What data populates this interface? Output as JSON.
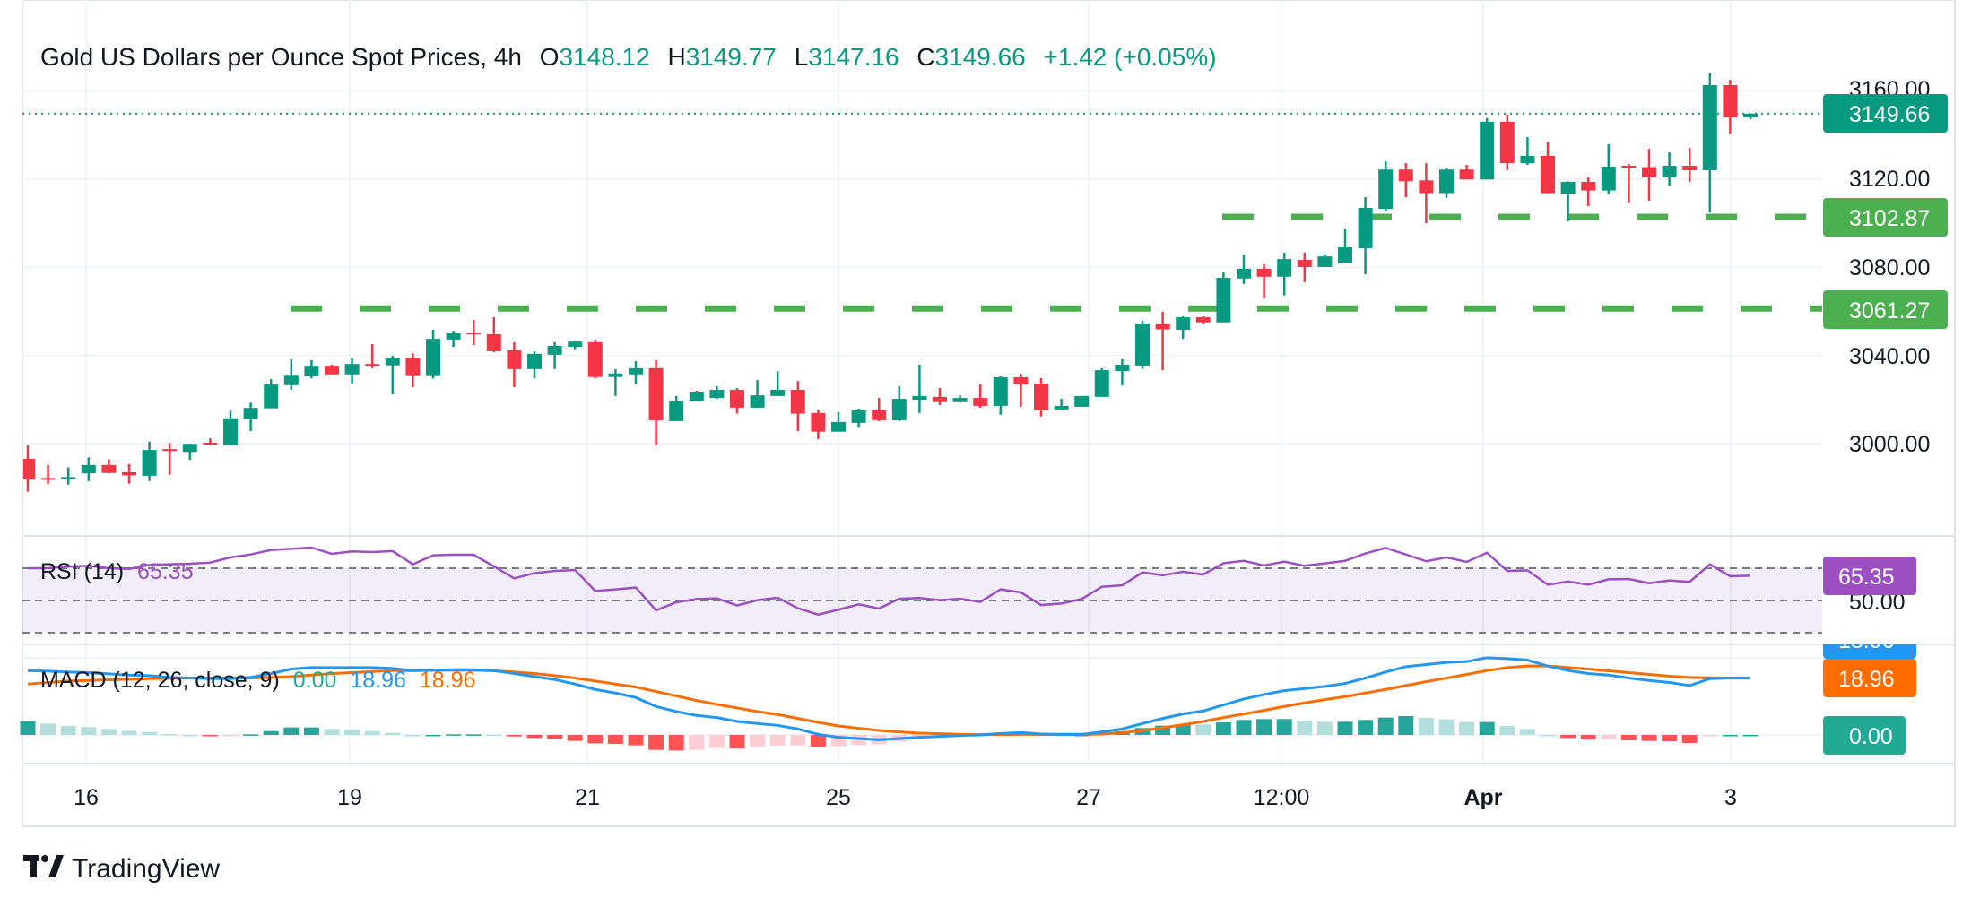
{
  "header": {
    "title": "Gold US Dollars per Ounce Spot Prices, 4h",
    "o_label": "O",
    "o_value": "3148.12",
    "h_label": "H",
    "h_value": "3149.77",
    "l_label": "L",
    "l_value": "3147.16",
    "c_label": "C",
    "c_value": "3149.66",
    "change": "+1.42 (+0.05%)"
  },
  "colors": {
    "up": "#089981",
    "down": "#f23645",
    "level": "#4caf50",
    "rsi": "#9c4fc0",
    "macd": "#2196f3",
    "signal": "#ff6d00",
    "hist_label": "#22ab94"
  },
  "price_axis": {
    "ticks": [
      "3160.00",
      "3120.00",
      "3080.00",
      "3040.00",
      "3000.00"
    ],
    "last_price": "3149.66",
    "levels": [
      "3102.87",
      "3061.27"
    ]
  },
  "rsi": {
    "legend": "RSI (14)",
    "value": "65.35",
    "axis_tick": "50.00"
  },
  "macd": {
    "legend": "MACD (12, 26, close, 9)",
    "hist_value": "0.00",
    "macd_value": "18.96",
    "signal_value": "18.96"
  },
  "time_axis": [
    "16",
    "19",
    "21",
    "25",
    "27",
    "12:00",
    "Apr",
    "3"
  ],
  "brand": "TradingView",
  "chart_data": {
    "type": "candlestick",
    "title": "Gold US Dollars per Ounce Spot Prices, 4h",
    "ylim": [
      2958,
      3201
    ],
    "y_ticks": [
      3000,
      3040,
      3080,
      3120,
      3160
    ],
    "x_tick_labels": [
      "16",
      "19",
      "21",
      "25",
      "27",
      "12:00",
      "Apr",
      "3"
    ],
    "grid": true,
    "horizontal_levels": [
      3102.87,
      3061.27
    ],
    "ohlc": [
      [
        2993.1,
        2999.2,
        2978.2,
        2983.7
      ],
      [
        2984.4,
        2990.3,
        2981.6,
        2984.0
      ],
      [
        2984.4,
        2989.2,
        2981.4,
        2984.8
      ],
      [
        2986.5,
        2993.7,
        2983.0,
        2990.3
      ],
      [
        2990.3,
        2992.9,
        2986.5,
        2986.7
      ],
      [
        2987.0,
        2990.7,
        2981.8,
        2985.6
      ],
      [
        2985.4,
        3000.9,
        2983.0,
        2997.1
      ],
      [
        2997.5,
        3000.3,
        2985.9,
        2996.8
      ],
      [
        2996.2,
        3000.0,
        2992.6,
        2999.9
      ],
      [
        3000.4,
        3002.4,
        2999.3,
        2999.6
      ],
      [
        2999.3,
        3015.0,
        2999.3,
        3011.5
      ],
      [
        3011.1,
        3018.6,
        3005.7,
        3016.2
      ],
      [
        3016.0,
        3029.2,
        3016.0,
        3026.8
      ],
      [
        3026.5,
        3038.2,
        3024.5,
        3031.2
      ],
      [
        3030.8,
        3037.8,
        3029.6,
        3035.3
      ],
      [
        3035.3,
        3035.8,
        3031.4,
        3031.4
      ],
      [
        3031.4,
        3038.6,
        3027.3,
        3036.1
      ],
      [
        3036.1,
        3045.1,
        3034.2,
        3035.5
      ],
      [
        3035.5,
        3039.8,
        3022.4,
        3038.6
      ],
      [
        3038.6,
        3041.0,
        3025.6,
        3031.0
      ],
      [
        3031.0,
        3051.6,
        3029.5,
        3047.5
      ],
      [
        3047.2,
        3051.2,
        3043.9,
        3050.0
      ],
      [
        3050.4,
        3056.1,
        3044.7,
        3049.8
      ],
      [
        3049.6,
        3057.3,
        3041.4,
        3041.9
      ],
      [
        3042.3,
        3046.0,
        3025.6,
        3033.8
      ],
      [
        3033.8,
        3041.9,
        3029.6,
        3040.7
      ],
      [
        3040.3,
        3046.0,
        3033.8,
        3044.3
      ],
      [
        3043.9,
        3046.3,
        3042.8,
        3046.3
      ],
      [
        3046.0,
        3047.2,
        3029.6,
        3030.2
      ],
      [
        3030.2,
        3033.8,
        3021.6,
        3031.8
      ],
      [
        3031.4,
        3037.4,
        3026.8,
        3034.2
      ],
      [
        3034.2,
        3037.8,
        2999.3,
        3010.6
      ],
      [
        3010.2,
        3021.6,
        3010.2,
        3019.5
      ],
      [
        3019.5,
        3024.0,
        3019.5,
        3023.6
      ],
      [
        3020.7,
        3026.0,
        3020.3,
        3024.4
      ],
      [
        3024.4,
        3025.2,
        3013.6,
        3016.3
      ],
      [
        3016.3,
        3028.8,
        3016.3,
        3021.9
      ],
      [
        3021.6,
        3032.9,
        3021.6,
        3024.4
      ],
      [
        3024.4,
        3028.4,
        3005.7,
        3013.6
      ],
      [
        3013.9,
        3015.5,
        3002.0,
        3005.4
      ],
      [
        3005.4,
        3014.3,
        3005.4,
        3009.8
      ],
      [
        3009.4,
        3015.9,
        3007.5,
        3015.1
      ],
      [
        3015.1,
        3020.7,
        3010.2,
        3010.6
      ],
      [
        3010.6,
        3026.0,
        3010.2,
        3020.3
      ],
      [
        3019.9,
        3035.8,
        3013.9,
        3021.6
      ],
      [
        3021.2,
        3025.2,
        3017.5,
        3019.2
      ],
      [
        3019.2,
        3021.9,
        3018.6,
        3020.7
      ],
      [
        3020.7,
        3026.8,
        3016.3,
        3017.1
      ],
      [
        3017.1,
        3030.5,
        3013.1,
        3030.1
      ],
      [
        3030.1,
        3031.7,
        3016.7,
        3026.8
      ],
      [
        3027.2,
        3029.7,
        3012.3,
        3015.1
      ],
      [
        3015.5,
        3020.3,
        3015.1,
        3017.1
      ],
      [
        3016.7,
        3021.6,
        3016.7,
        3021.6
      ],
      [
        3021.2,
        3034.2,
        3021.2,
        3033.3
      ],
      [
        3032.9,
        3038.3,
        3026.4,
        3035.8
      ],
      [
        3035.4,
        3055.7,
        3033.9,
        3054.5
      ],
      [
        3054.5,
        3059.8,
        3033.3,
        3051.8
      ],
      [
        3051.6,
        3057.7,
        3047.5,
        3057.3
      ],
      [
        3057.3,
        3057.7,
        3054.1,
        3055.0
      ],
      [
        3055.0,
        3077.6,
        3055.0,
        3075.2
      ],
      [
        3074.9,
        3085.8,
        3072.4,
        3079.3
      ],
      [
        3079.3,
        3081.3,
        3065.9,
        3075.7
      ],
      [
        3075.7,
        3086.6,
        3067.2,
        3083.7
      ],
      [
        3083.3,
        3086.6,
        3073.2,
        3080.1
      ],
      [
        3080.1,
        3085.8,
        3080.1,
        3084.9
      ],
      [
        3081.7,
        3097.6,
        3081.7,
        3089.0
      ],
      [
        3088.6,
        3111.8,
        3076.8,
        3106.9
      ],
      [
        3106.5,
        3128.0,
        3105.7,
        3124.3
      ],
      [
        3124.3,
        3127.2,
        3111.8,
        3119.0
      ],
      [
        3119.4,
        3127.2,
        3100.0,
        3113.6
      ],
      [
        3113.6,
        3124.8,
        3111.5,
        3124.3
      ],
      [
        3124.3,
        3126.4,
        3119.8,
        3119.8
      ],
      [
        3119.8,
        3147.6,
        3119.8,
        3146.0
      ],
      [
        3146.0,
        3149.2,
        3124.0,
        3127.2
      ],
      [
        3127.2,
        3139.0,
        3126.4,
        3130.5
      ],
      [
        3130.5,
        3137.0,
        3113.6,
        3113.6
      ],
      [
        3113.2,
        3119.0,
        3100.8,
        3118.7
      ],
      [
        3118.7,
        3120.7,
        3107.7,
        3114.8
      ],
      [
        3114.8,
        3135.8,
        3113.2,
        3125.6
      ],
      [
        3126.0,
        3126.8,
        3109.4,
        3125.4
      ],
      [
        3125.4,
        3133.7,
        3110.2,
        3120.7
      ],
      [
        3120.7,
        3132.1,
        3116.7,
        3126.0
      ],
      [
        3126.0,
        3134.1,
        3118.7,
        3124.0
      ],
      [
        3124.0,
        3167.9,
        3104.9,
        3162.6
      ],
      [
        3162.6,
        3165.0,
        3140.6,
        3148.0
      ],
      [
        3148.12,
        3149.77,
        3147.16,
        3149.66
      ]
    ],
    "rsi": [
      70,
      70,
      71,
      71.5,
      70,
      69.6,
      72,
      72.4,
      72.8,
      73.5,
      76.7,
      78.5,
      81.3,
      82,
      82.8,
      78.9,
      80.4,
      80,
      80.6,
      72.4,
      78,
      78.3,
      78.3,
      71.1,
      63.7,
      66.9,
      68.3,
      68.9,
      55.9,
      56.9,
      58,
      43.9,
      48.9,
      50.9,
      51.3,
      46.9,
      50.2,
      51.7,
      45.2,
      41.3,
      44.3,
      47.6,
      45,
      51.1,
      51.5,
      50.2,
      51.1,
      49.1,
      56.9,
      55,
      47.2,
      48.1,
      50.9,
      58.5,
      59.4,
      67.4,
      65.6,
      67.8,
      66.1,
      73.1,
      74.6,
      71.7,
      74.1,
      71.5,
      73,
      74.6,
      79.1,
      82.6,
      78.5,
      74.3,
      76.7,
      73.9,
      79.6,
      68.3,
      68.7,
      59.8,
      61.7,
      59.8,
      63.1,
      63.3,
      60.7,
      62.4,
      61.5,
      72.4,
      65,
      65.35
    ],
    "rsi_levels": [
      70,
      50,
      30
    ],
    "macd": [
      21.5,
      21.3,
      21,
      20.8,
      20.4,
      20,
      19.8,
      19.2,
      19,
      18.8,
      18.8,
      19.2,
      20.5,
      22,
      22.5,
      22.5,
      22.5,
      22.5,
      22.2,
      21.5,
      21.6,
      21.8,
      21.8,
      21.5,
      20.5,
      19.5,
      18.5,
      17,
      15.2,
      14,
      12.5,
      9.5,
      7.8,
      6.5,
      5.8,
      4.5,
      3.8,
      3.2,
      2,
      0.2,
      -0.8,
      -1.2,
      -1.6,
      -1.2,
      -0.8,
      -0.5,
      -0.2,
      0,
      0.5,
      0.8,
      0.3,
      0.2,
      0.2,
      1,
      2,
      3.8,
      5.5,
      7,
      8,
      10,
      12,
      13.5,
      14.8,
      15.5,
      16.2,
      17.2,
      19,
      21,
      22.8,
      23.5,
      24.2,
      24.5,
      25.8,
      25.5,
      25,
      23,
      21.5,
      20.5,
      20,
      19,
      18.2,
      17.5,
      16.5,
      18.8,
      19,
      18.96
    ],
    "signal": [
      17,
      17.5,
      18,
      18.2,
      18.4,
      18.6,
      18.8,
      18.9,
      19,
      19,
      19,
      19,
      19.2,
      19.5,
      20,
      20.5,
      20.8,
      21.2,
      21.5,
      21.5,
      21.6,
      21.6,
      21.6,
      21.4,
      21,
      20.5,
      19.8,
      19,
      18,
      17,
      16,
      14.5,
      13,
      11.5,
      10.2,
      9,
      7.8,
      6.8,
      5.5,
      4.2,
      3,
      2.2,
      1.5,
      1,
      0.6,
      0.4,
      0.2,
      0.1,
      0.1,
      0.2,
      0.2,
      0.2,
      0.2,
      0.3,
      0.7,
      1.5,
      2.4,
      3.4,
      4.5,
      5.8,
      7,
      8.2,
      9.5,
      10.7,
      11.8,
      12.8,
      14,
      15.2,
      16.5,
      17.8,
      19,
      20.2,
      21.5,
      22.5,
      23,
      23,
      22.5,
      22,
      21.4,
      20.8,
      20.2,
      19.6,
      19.2,
      19.1,
      19,
      18.96
    ]
  }
}
